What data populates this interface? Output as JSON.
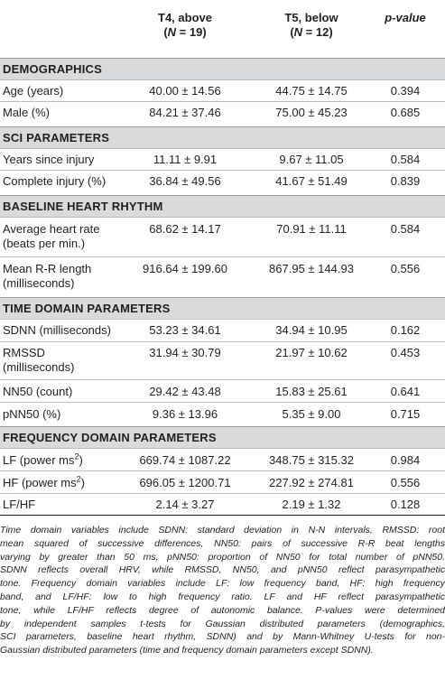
{
  "header": {
    "col1_line1": "T4, above",
    "col1_line2_pre": "(",
    "col1_line2_n": "N",
    "col1_line2_post": " = 19)",
    "col2_line1": "T5, below",
    "col2_line2_pre": "(",
    "col2_line2_n": "N",
    "col2_line2_post": " = 12)",
    "col3": "p-value"
  },
  "sections": {
    "demographics": "DEMOGRAPHICS",
    "sci": "SCI PARAMETERS",
    "baseline": "BASELINE HEART RHYTHM",
    "time": "TIME DOMAIN PARAMETERS",
    "freq": "FREQUENCY DOMAIN PARAMETERS"
  },
  "rows": {
    "age": {
      "label": "Age (years)",
      "t4": "40.00 ± 14.56",
      "t5": "44.75 ± 14.75",
      "p": "0.394"
    },
    "male": {
      "label": "Male (%)",
      "t4": "84.21 ± 37.46",
      "t5": "75.00 ± 45.23",
      "p": "0.685"
    },
    "years": {
      "label": "Years since injury",
      "t4": "11.11 ± 9.91",
      "t5": "9.67 ± 11.05",
      "p": "0.584"
    },
    "complete": {
      "label": "Complete injury (%)",
      "t4": "36.84 ± 49.56",
      "t5": "41.67 ± 51.49",
      "p": "0.839"
    },
    "hr": {
      "label1": "Average heart rate",
      "label2": "(beats per min.)",
      "t4": "68.62 ± 14.17",
      "t5": "70.91 ± 11.11",
      "p": "0.584"
    },
    "rr": {
      "label1": "Mean R-R length",
      "label2": "(milliseconds)",
      "t4": "916.64 ± 199.60",
      "t5": "867.95 ± 144.93",
      "p": "0.556"
    },
    "sdnn": {
      "label": "SDNN (milliseconds)",
      "t4": "53.23 ± 34.61",
      "t5": "34.94 ± 10.95",
      "p": "0.162"
    },
    "rmssd": {
      "label1": "RMSSD",
      "label2": "(milliseconds)",
      "t4": "31.94 ± 30.79",
      "t5": "21.97 ± 10.62",
      "p": "0.453"
    },
    "nn50": {
      "label": "NN50 (count)",
      "t4": "29.42 ± 43.48",
      "t5": "15.83 ± 25.61",
      "p": "0.641"
    },
    "pnn50": {
      "label": "pNN50 (%)",
      "t4": "9.36 ± 13.96",
      "t5": "5.35 ± 9.00",
      "p": "0.715"
    },
    "lf": {
      "label": "LF (power ms",
      "sup": "2",
      "label_end": ")",
      "t4": "669.74 ± 1087.22",
      "t5": "348.75 ± 315.32",
      "p": "0.984"
    },
    "hf": {
      "label": "HF (power ms",
      "sup": "2",
      "label_end": ")",
      "t4": "696.05 ± 1200.71",
      "t5": "227.92 ± 274.81",
      "p": "0.556"
    },
    "lfhf": {
      "label": "LF/HF",
      "t4": "2.14 ± 3.27",
      "t5": "2.19 ± 1.32",
      "p": "0.128"
    }
  },
  "footnote_lines": [
    "Time domain variables include SDNN: standard deviation in N-N intervals, RMSSD: root",
    "mean squared of successive differences, NN50: pairs of successive R-R beat lengths",
    "varying by greater than 50 ms, pNN50: proportion of NN50 for total number of pNN50.",
    "SDNN reflects overall HRV, while RMSSD, NN50, and pNN50 reflect parasympathetic",
    "tone. Frequency domain variables include LF: low frequency band, HF: high frequency",
    "band, and LF/HF: low to high frequency ratio. LF and HF reflect parasympathetic",
    "tone, while LF/HF reflects degree of autonomic balance. P-values were determined",
    "by independent samples t-tests for Gaussian distributed parameters (demographics,",
    "SCI parameters, baseline heart rhythm, SDNN) and by Mann-Whitney U-tests for non-",
    "Gaussian distributed parameters (time and frequency domain parameters except SDNN)."
  ]
}
